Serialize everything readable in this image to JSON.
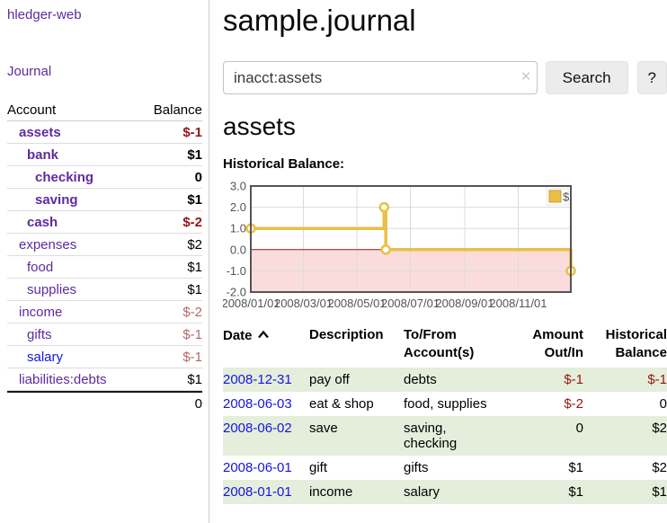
{
  "sidebar": {
    "brand": "hledger-web",
    "nav": {
      "journal": "Journal"
    },
    "accounts_table": {
      "headers": {
        "account": "Account",
        "balance": "Balance"
      },
      "rows": [
        {
          "name": "assets",
          "balance": "$-1"
        },
        {
          "name": "bank",
          "balance": "$1"
        },
        {
          "name": "checking",
          "balance": "0"
        },
        {
          "name": "saving",
          "balance": "$1"
        },
        {
          "name": "cash",
          "balance": "$-2"
        },
        {
          "name": "expenses",
          "balance": "$2"
        },
        {
          "name": "food",
          "balance": "$1"
        },
        {
          "name": "supplies",
          "balance": "$1"
        },
        {
          "name": "income",
          "balance": "$-2"
        },
        {
          "name": "gifts",
          "balance": "$-1"
        },
        {
          "name": "salary",
          "balance": "$-1"
        },
        {
          "name": "liabilities:debts",
          "balance": "$1"
        }
      ],
      "total": "0"
    }
  },
  "header": {
    "title": "sample.journal"
  },
  "search": {
    "value": "inacct:assets",
    "clear_label": "×",
    "button_label": "Search",
    "help_label": "?"
  },
  "account_page": {
    "title": "assets",
    "chart_heading": "Historical Balance:"
  },
  "chart_data": {
    "type": "line",
    "title": "Historical Balance",
    "step": true,
    "grid": true,
    "legend_position": "top-right",
    "xlim": [
      "2008-01-01",
      "2008-12-31"
    ],
    "ylim": [
      -2,
      3
    ],
    "y_ticks": [
      "3.0",
      "2.0",
      "1.0",
      "0.0",
      "-1.0",
      "-2.0"
    ],
    "x_ticks": [
      {
        "date": "2008-01-01",
        "label": "2008/01/01"
      },
      {
        "date": "2008-03-01",
        "label": "2008/03/01"
      },
      {
        "date": "2008-05-01",
        "label": "2008/05/01"
      },
      {
        "date": "2008-07-01",
        "label": "2008/07/01"
      },
      {
        "date": "2008-09-01",
        "label": "2008/09/01"
      },
      {
        "date": "2008-11-01",
        "label": "2008/11/01"
      }
    ],
    "series": [
      {
        "name": "$",
        "color": "#e9bf45",
        "points": [
          [
            "2008-01-01",
            1
          ],
          [
            "2008-06-01",
            2
          ],
          [
            "2008-06-03",
            0
          ],
          [
            "2008-12-31",
            -1
          ]
        ]
      }
    ],
    "negative_region_color": "#fbdcdc",
    "zero_line_color": "#8b1a1a",
    "grid_color": "#dcdcdc",
    "border_color": "#545454",
    "legend": {
      "label": "$",
      "swatch_color": "#e9bf45",
      "swatch_border": "#c7a22c"
    }
  },
  "transactions": {
    "headers": {
      "date": "Date",
      "description": "Description",
      "accounts": "To/From Account(s)",
      "amount": "Amount Out/In",
      "balance": "Historical Balance"
    },
    "rows": [
      {
        "date": "2008-12-31",
        "description": "pay off",
        "accounts": "debts",
        "amount": "$-1",
        "balance": "$-1"
      },
      {
        "date": "2008-06-03",
        "description": "eat & shop",
        "accounts": "food, supplies",
        "amount": "$-2",
        "balance": "0"
      },
      {
        "date": "2008-06-02",
        "description": "save",
        "accounts": "saving,\nchecking",
        "amount": "0",
        "balance": "$2"
      },
      {
        "date": "2008-06-01",
        "description": "gift",
        "accounts": "gifts",
        "amount": "$1",
        "balance": "$2"
      },
      {
        "date": "2008-01-01",
        "description": "income",
        "accounts": "salary",
        "amount": "$1",
        "balance": "$1"
      }
    ]
  }
}
